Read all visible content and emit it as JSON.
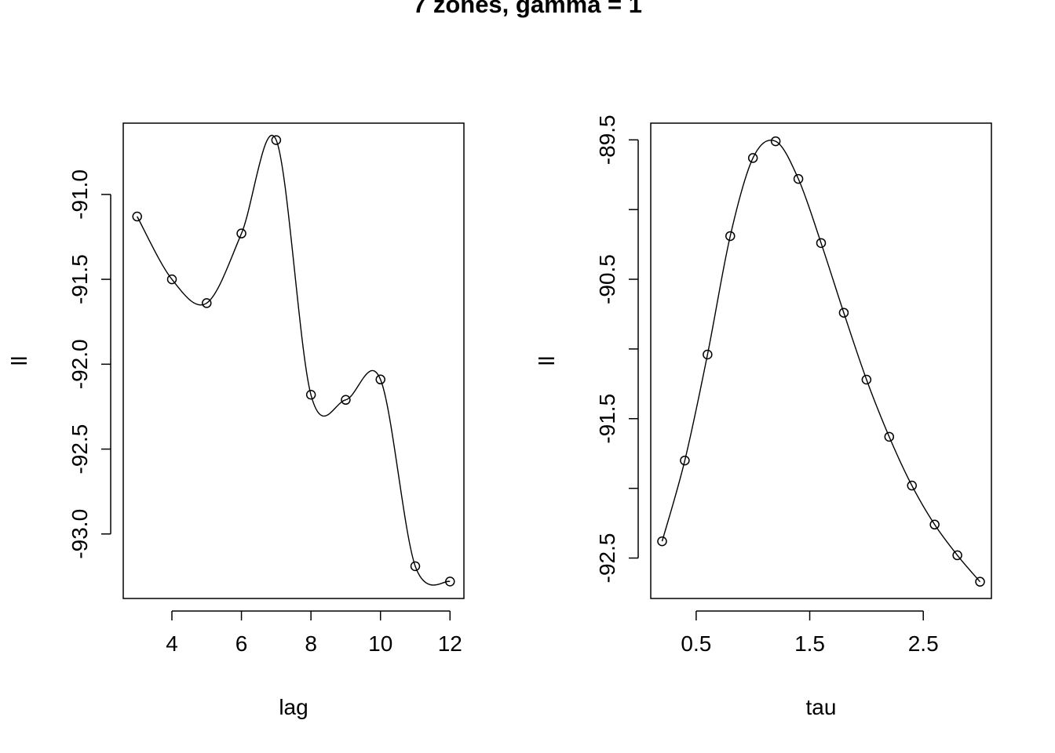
{
  "figure": {
    "title": "7 zones, gamma = 1"
  },
  "chart_data": [
    {
      "type": "scatter",
      "overlay": "smooth-line",
      "xlabel": "lag",
      "ylabel": "ll",
      "xlim": [
        2.6,
        12.4
      ],
      "ylim": [
        -93.38,
        -90.58
      ],
      "xticks": [
        4,
        6,
        8,
        10,
        12
      ],
      "xtick_labels": [
        "4",
        "6",
        "8",
        "10",
        "12"
      ],
      "yticks": [
        -93.0,
        -92.5,
        -92.0,
        -91.5,
        -91.0
      ],
      "ytick_labels": [
        "-93.0",
        "-92.5",
        "-92.0",
        "-91.5",
        "-91.0"
      ],
      "x": [
        3,
        4,
        5,
        6,
        7,
        8,
        9,
        10,
        11,
        12
      ],
      "y": [
        -91.13,
        -91.5,
        -91.64,
        -91.23,
        -90.68,
        -92.18,
        -92.21,
        -92.09,
        -93.19,
        -93.28
      ],
      "grid": false,
      "legend": "none"
    },
    {
      "type": "scatter",
      "overlay": "smooth-line",
      "xlabel": "tau",
      "ylabel": "ll",
      "xlim": [
        0.1,
        3.1
      ],
      "ylim": [
        -92.79,
        -89.38
      ],
      "xticks": [
        0.5,
        1.5,
        2.5
      ],
      "xtick_labels": [
        "0.5",
        "1.5",
        "2.5"
      ],
      "yticks": [
        -92.5,
        -92.0,
        -91.5,
        -91.0,
        -90.5,
        -90.0,
        -89.5
      ],
      "ytick_labels": [
        "-92.5",
        "",
        "-91.5",
        "",
        "-90.5",
        "",
        "-89.5"
      ],
      "x": [
        0.2,
        0.4,
        0.6,
        0.8,
        1.0,
        1.2,
        1.4,
        1.6,
        1.8,
        2.0,
        2.2,
        2.4,
        2.6,
        2.8,
        3.0
      ],
      "y": [
        -92.38,
        -91.8,
        -91.04,
        -90.19,
        -89.63,
        -89.51,
        -89.78,
        -90.24,
        -90.74,
        -91.22,
        -91.63,
        -91.98,
        -92.26,
        -92.48,
        -92.67
      ],
      "grid": false,
      "legend": "none"
    }
  ]
}
